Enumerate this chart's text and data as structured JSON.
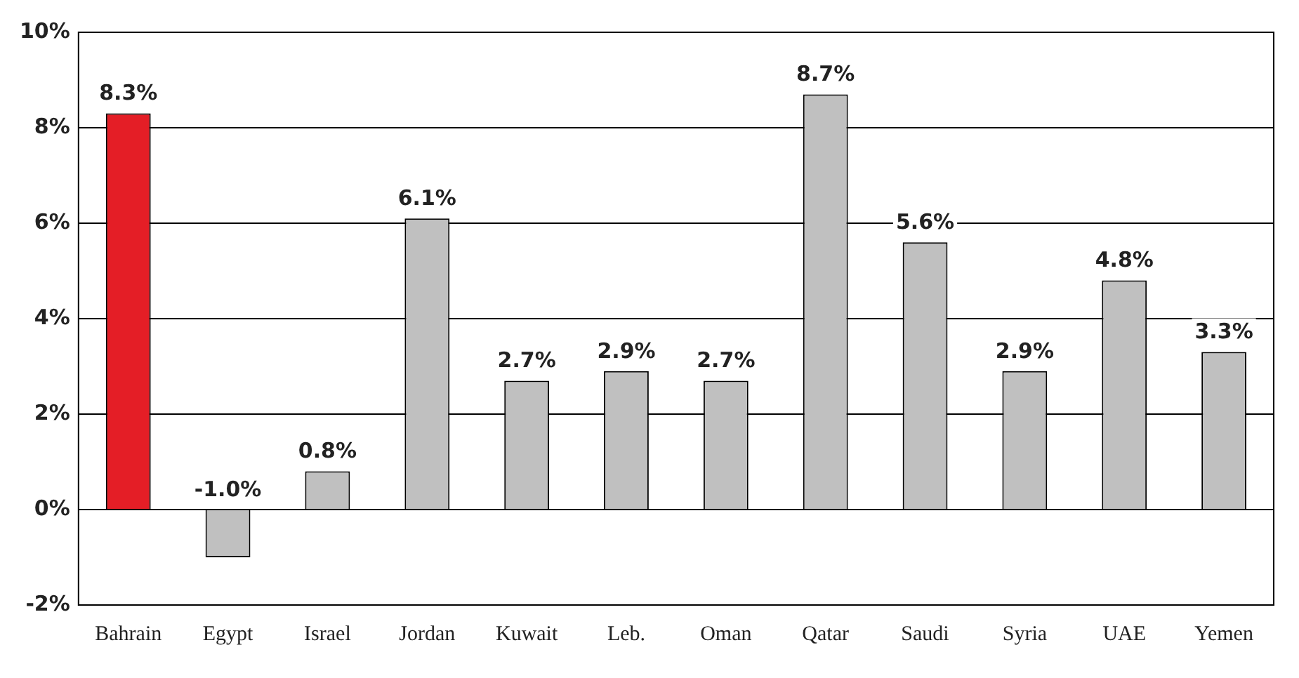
{
  "chart_data": {
    "type": "bar",
    "categories": [
      "Bahrain",
      "Egypt",
      "Israel",
      "Jordan",
      "Kuwait",
      "Leb.",
      "Oman",
      "Qatar",
      "Saudi",
      "Syria",
      "UAE",
      "Yemen"
    ],
    "values": [
      8.3,
      -1.0,
      0.8,
      6.1,
      2.7,
      2.9,
      2.7,
      8.7,
      5.6,
      2.9,
      4.8,
      3.3
    ],
    "colors": [
      "#e41e26",
      "#c0c0c0",
      "#c0c0c0",
      "#c0c0c0",
      "#c0c0c0",
      "#c0c0c0",
      "#c0c0c0",
      "#c0c0c0",
      "#c0c0c0",
      "#c0c0c0",
      "#c0c0c0",
      "#c0c0c0"
    ],
    "value_labels": [
      "8.3%",
      "-1.0%",
      "0.8%",
      "6.1%",
      "2.7%",
      "2.9%",
      "2.7%",
      "8.7%",
      "5.6%",
      "2.9%",
      "4.8%",
      "3.3%"
    ],
    "ylim": [
      -2,
      10
    ],
    "yticks": [
      {
        "value": -2,
        "label": "-2%"
      },
      {
        "value": 0,
        "label": "0%"
      },
      {
        "value": 2,
        "label": "2%"
      },
      {
        "value": 4,
        "label": "4%"
      },
      {
        "value": 6,
        "label": "6%"
      },
      {
        "value": 8,
        "label": "8%"
      },
      {
        "value": 10,
        "label": "10%"
      }
    ],
    "grid": "y",
    "legend": false
  }
}
